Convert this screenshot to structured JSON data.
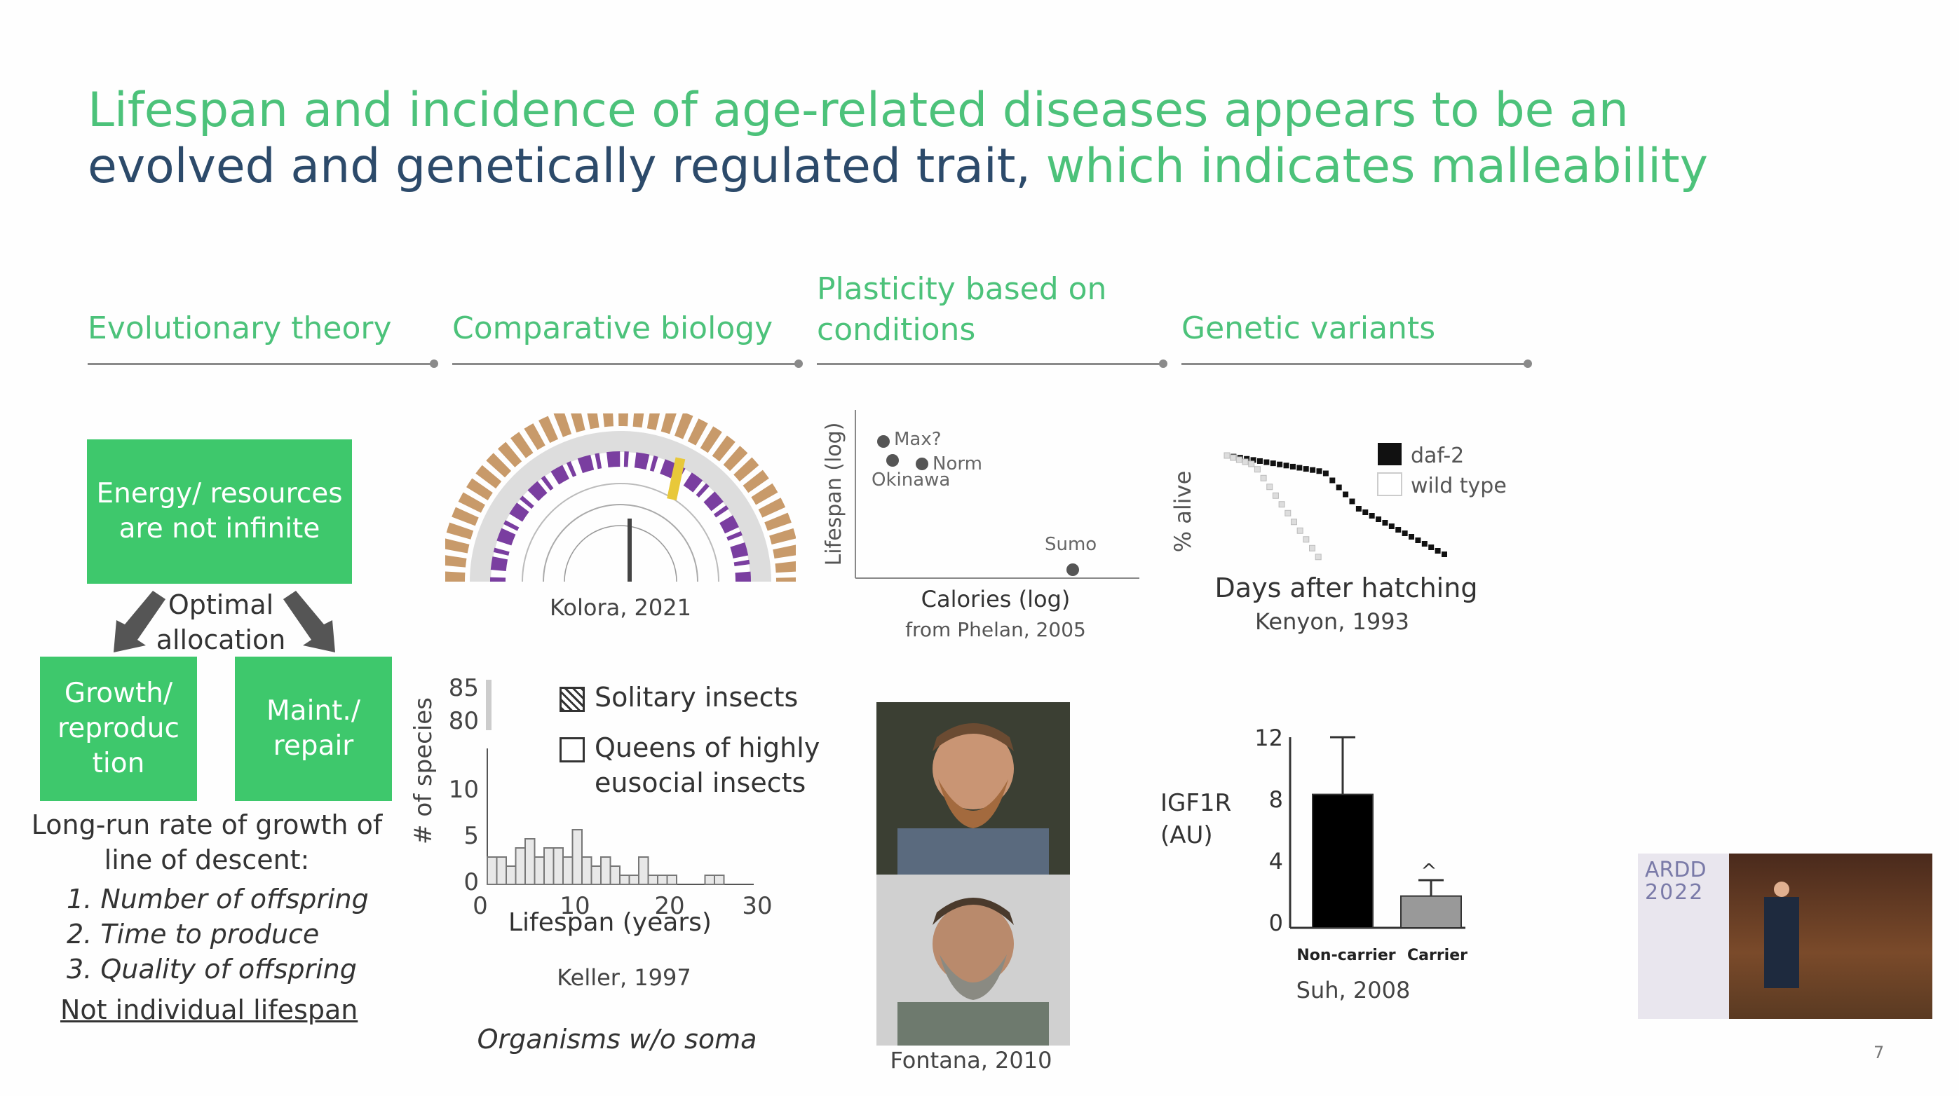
{
  "slide": {
    "title_line1": "Lifespan and incidence of age-related diseases appears to be an",
    "title_line2_dark": "evolved and genetically regulated trait,",
    "title_line2_green": " which indicates malleability",
    "page_number": "7",
    "colors": {
      "green": "#4cc27a",
      "box_green": "#3ec86c",
      "dark_blue": "#2c4a6a"
    }
  },
  "columns": {
    "evolutionary": "Evolutionary theory",
    "comparative": "Comparative biology",
    "plasticity": "Plasticity based on conditions",
    "genetic": "Genetic variants"
  },
  "evolution": {
    "energy_box": "Energy/ resources are not infinite",
    "allocation": "Optimal allocation",
    "growth_box": "Growth/ reproduc tion",
    "maint_box": "Maint./ repair",
    "long_run": "Long-run rate of growth of line of descent:",
    "items": [
      "1. Number of offspring",
      "2. Time to produce",
      "3. Quality of offspring"
    ],
    "not_individual": "Not individual lifespan"
  },
  "comparative": {
    "tree_caption": "Kolora, 2021",
    "legend_solitary": "Solitary insects",
    "legend_queens": "Queens of highly eusocial insects",
    "caption": "Keller, 1997",
    "note": "Organisms w/o soma",
    "histogram": {
      "type": "bar",
      "ylabel": "# of species",
      "xlabel": "Lifespan (years)",
      "yticks": [
        "0",
        "5",
        "10",
        "80",
        "85"
      ],
      "xticks": [
        "0",
        "10",
        "20",
        "30"
      ],
      "values": [
        3,
        3,
        2,
        4,
        5,
        3,
        4,
        4,
        3,
        6,
        3,
        2,
        3,
        2,
        1,
        1,
        3,
        1,
        1,
        1,
        0,
        0,
        0,
        1,
        1
      ]
    }
  },
  "plasticity": {
    "chart_data": {
      "type": "scatter",
      "xlabel": "Calories (log)",
      "ylabel": "Lifespan (log)",
      "points": [
        {
          "label": "Max?"
        },
        {
          "label": "Okinawa"
        },
        {
          "label": "Norm"
        },
        {
          "label": "Sumo"
        }
      ]
    },
    "caption": "from Phelan, 2005",
    "photo_caption": "Fontana, 2010"
  },
  "genetic": {
    "survival": {
      "type": "line",
      "ylabel": "% alive",
      "xlabel": "Days after hatching",
      "legend": [
        "daf-2",
        "wild type"
      ]
    },
    "caption": "Kenyon, 1993",
    "bar_chart": {
      "type": "bar",
      "ylabel": "IGF1R (AU)",
      "categories": [
        "Non-carrier",
        "Carrier"
      ],
      "values": [
        8.4,
        2.0
      ],
      "errors": [
        3.6,
        1.0
      ],
      "yticks": [
        "0",
        "4",
        "8",
        "12"
      ],
      "ylim": [
        0,
        12
      ],
      "marker": "^"
    },
    "bar_caption": "Suh, 2008"
  },
  "video": {
    "logo_line1": "ARDD",
    "logo_line2": "2022"
  }
}
